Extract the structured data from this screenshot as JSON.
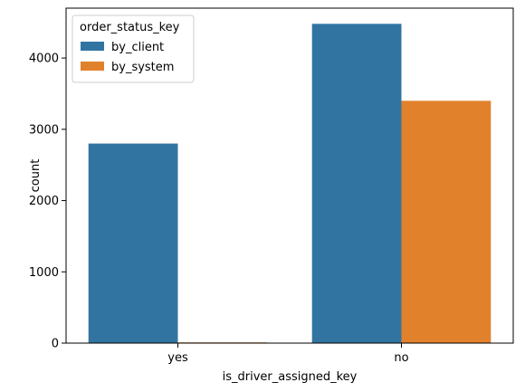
{
  "chart_data": {
    "type": "bar",
    "categories": [
      "yes",
      "no"
    ],
    "series": [
      {
        "name": "by_client",
        "values": [
          2800,
          4480
        ]
      },
      {
        "name": "by_system",
        "values": [
          10,
          3400
        ]
      }
    ],
    "xlabel": "is_driver_assigned_key",
    "ylabel": "count",
    "ylim": [
      0,
      4700
    ],
    "yticks": [
      0,
      1000,
      2000,
      3000,
      4000
    ],
    "legend": {
      "title": "order_status_key",
      "placement": "top-left"
    },
    "colors": {
      "by_client": "#3274a1",
      "by_system": "#e1812c"
    },
    "grid": false
  }
}
